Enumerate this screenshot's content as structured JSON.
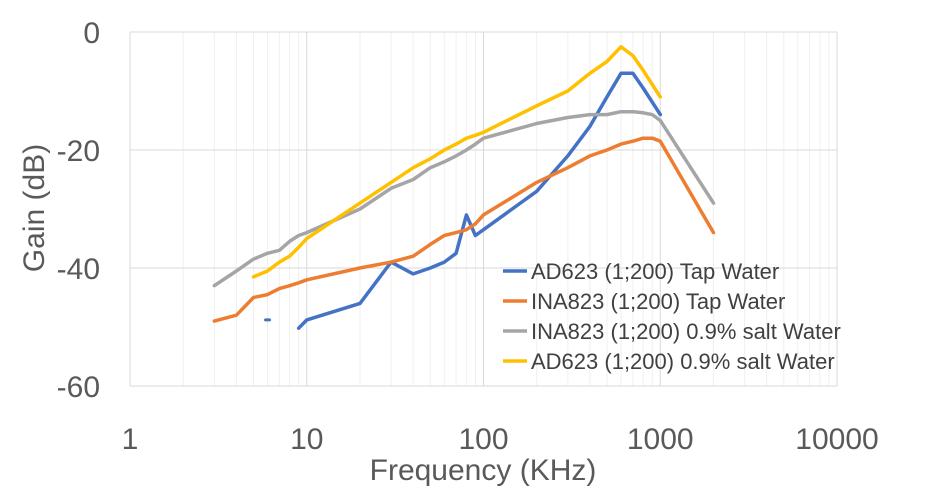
{
  "chart_data": {
    "type": "line",
    "xlabel": "Frequency (KHz)",
    "ylabel": "Gain (dB)",
    "x_scale": "log",
    "xlim": [
      1,
      10000
    ],
    "ylim": [
      -60,
      0
    ],
    "x_ticks": [
      "1",
      "10",
      "100",
      "1000",
      "10000"
    ],
    "y_ticks": [
      "0",
      "-20",
      "-40",
      "-60"
    ],
    "grid": true,
    "legend_position": "bottom-right",
    "series": [
      {
        "name": "AD623 (1;200) Tap Water",
        "color": "#4472C4",
        "points": [
          [
            6,
            -48.8
          ],
          [
            null,
            null
          ],
          [
            9,
            -50.2
          ],
          [
            10,
            -48.8
          ],
          [
            20,
            -46
          ],
          [
            30,
            -39
          ],
          [
            40,
            -41
          ],
          [
            50,
            -40
          ],
          [
            60,
            -39
          ],
          [
            70,
            -37.5
          ],
          [
            80,
            -31
          ],
          [
            90,
            -34.5
          ],
          [
            100,
            -33.5
          ],
          [
            200,
            -27
          ],
          [
            300,
            -21
          ],
          [
            400,
            -16
          ],
          [
            500,
            -11
          ],
          [
            600,
            -7
          ],
          [
            700,
            -7
          ],
          [
            800,
            -9.5
          ],
          [
            1000,
            -14
          ]
        ]
      },
      {
        "name": "INA823 (1;200) Tap Water",
        "color": "#ED7D31",
        "points": [
          [
            3,
            -49
          ],
          [
            4,
            -48
          ],
          [
            5,
            -45
          ],
          [
            6,
            -44.5
          ],
          [
            7,
            -43.5
          ],
          [
            8,
            -43
          ],
          [
            9,
            -42.5
          ],
          [
            10,
            -42
          ],
          [
            20,
            -40
          ],
          [
            30,
            -39
          ],
          [
            40,
            -38
          ],
          [
            50,
            -36
          ],
          [
            60,
            -34.5
          ],
          [
            70,
            -34
          ],
          [
            80,
            -33.5
          ],
          [
            90,
            -32.5
          ],
          [
            100,
            -31
          ],
          [
            200,
            -25.5
          ],
          [
            300,
            -23
          ],
          [
            400,
            -21
          ],
          [
            500,
            -20
          ],
          [
            600,
            -19
          ],
          [
            700,
            -18.5
          ],
          [
            800,
            -18
          ],
          [
            900,
            -18
          ],
          [
            1000,
            -18.5
          ],
          [
            2000,
            -34
          ]
        ]
      },
      {
        "name": "INA823 (1;200) 0.9% salt Water",
        "color": "#A5A5A5",
        "points": [
          [
            3,
            -43
          ],
          [
            4,
            -40.5
          ],
          [
            5,
            -38.5
          ],
          [
            6,
            -37.5
          ],
          [
            7,
            -37
          ],
          [
            8,
            -35.5
          ],
          [
            9,
            -34.5
          ],
          [
            10,
            -34
          ],
          [
            20,
            -30
          ],
          [
            30,
            -26.5
          ],
          [
            40,
            -25
          ],
          [
            50,
            -23
          ],
          [
            60,
            -22
          ],
          [
            70,
            -21
          ],
          [
            80,
            -20
          ],
          [
            90,
            -19
          ],
          [
            100,
            -18
          ],
          [
            200,
            -15.5
          ],
          [
            300,
            -14.5
          ],
          [
            400,
            -14
          ],
          [
            500,
            -14
          ],
          [
            600,
            -13.5
          ],
          [
            700,
            -13.5
          ],
          [
            800,
            -13.7
          ],
          [
            900,
            -14
          ],
          [
            1000,
            -15
          ],
          [
            2000,
            -29
          ]
        ]
      },
      {
        "name": "AD623 (1;200) 0.9% salt Water",
        "color": "#FFC000",
        "points": [
          [
            5,
            -41.5
          ],
          [
            6,
            -40.5
          ],
          [
            7,
            -39
          ],
          [
            8,
            -38
          ],
          [
            9,
            -36.5
          ],
          [
            10,
            -35
          ],
          [
            20,
            -29
          ],
          [
            30,
            -25.5
          ],
          [
            40,
            -23
          ],
          [
            50,
            -21.5
          ],
          [
            60,
            -20
          ],
          [
            70,
            -19
          ],
          [
            80,
            -18
          ],
          [
            90,
            -17.5
          ],
          [
            100,
            -17
          ],
          [
            200,
            -12.5
          ],
          [
            300,
            -10
          ],
          [
            400,
            -7
          ],
          [
            500,
            -5
          ],
          [
            600,
            -2.5
          ],
          [
            700,
            -4
          ],
          [
            800,
            -6.5
          ],
          [
            1000,
            -11
          ]
        ]
      }
    ]
  }
}
